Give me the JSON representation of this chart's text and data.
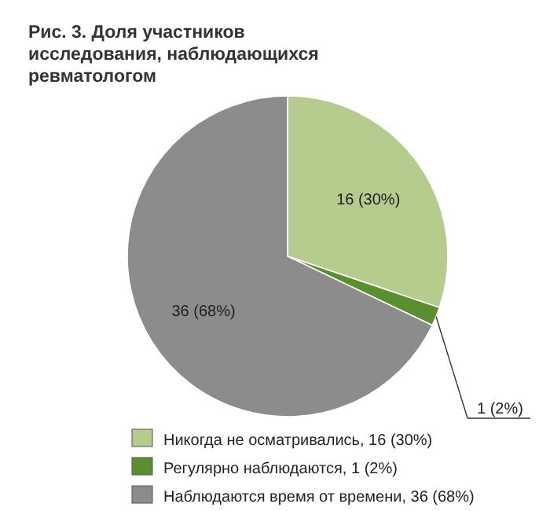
{
  "chart_data": {
    "type": "pie",
    "title": "Рис. 3. Доля участников исследования, наблюдающихся ревматологом",
    "categories": [
      "Никогда не осматривались, 16 (30%)",
      "Регулярно наблюдаются, 1 (2%)",
      "Наблюдаются время от времени, 36 (68%)"
    ],
    "values": [
      16,
      1,
      36
    ],
    "colors": [
      "#b5cc8e",
      "#5a8f2e",
      "#8c8c8c"
    ],
    "value_labels": [
      "16 (30%)",
      "1 (2%)",
      "36 (68%)"
    ],
    "legend": "bottom"
  }
}
